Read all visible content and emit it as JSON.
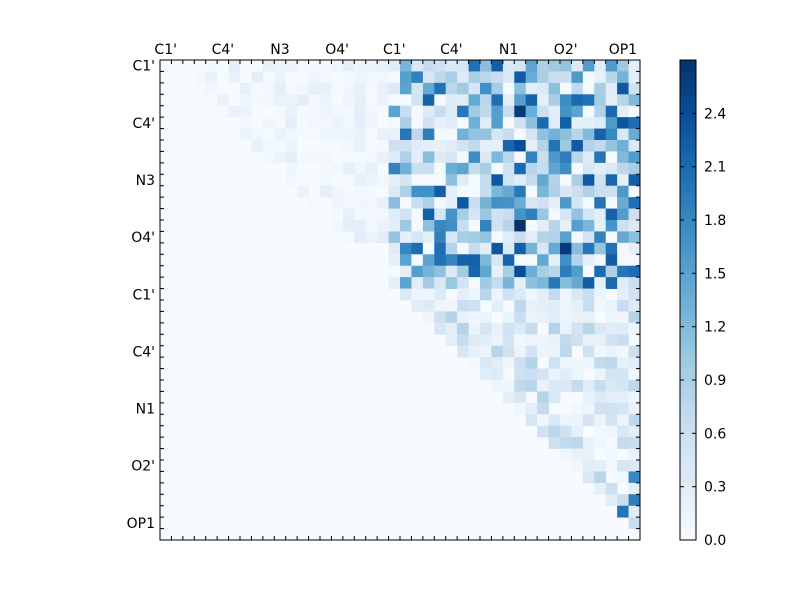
{
  "chart_data": {
    "type": "heatmap",
    "title": "",
    "xlabel": "",
    "ylabel": "",
    "grid": false,
    "rows": 42,
    "cols": 42,
    "matrix_form": "upper-triangular",
    "x_tick_labels": [
      "C1'",
      "C4'",
      "N3",
      "O4'",
      "C1'",
      "C4'",
      "N1",
      "O2'",
      "OP1"
    ],
    "y_tick_labels": [
      "C1'",
      "C4'",
      "N3",
      "O4'",
      "C1'",
      "C4'",
      "N1",
      "O2'",
      "OP1"
    ],
    "tick_positions": [
      0.5,
      5.5,
      10.5,
      15.5,
      20.5,
      25.5,
      30.5,
      35.5,
      40.5
    ],
    "color_scale": {
      "colormap": "Blues",
      "range": [
        0.0,
        2.7
      ],
      "colors": [
        "#f7fbff",
        "#deebf7",
        "#c6dbef",
        "#9ecae1",
        "#6baed6",
        "#4292c6",
        "#2171b5",
        "#08519c",
        "#08306b"
      ],
      "ticks": [
        0.0,
        0.3,
        0.6,
        0.9,
        1.2,
        1.5,
        1.8,
        2.1,
        2.4
      ],
      "tick_labels": [
        "0.0",
        "0.3",
        "0.6",
        "0.9",
        "1.2",
        "1.5",
        "1.8",
        "2.1",
        "2.4"
      ]
    },
    "value_regions": [
      {
        "rows": [
          0,
          15
        ],
        "cols": [
          1,
          19
        ],
        "level": 0.15,
        "note": "first block, upper triangle"
      },
      {
        "rows": [
          0,
          19
        ],
        "cols": [
          20,
          41
        ],
        "level": 1.25,
        "note": "off-diagonal block"
      },
      {
        "rows": [
          20,
          41
        ],
        "cols": [
          20,
          41
        ],
        "level": 0.45,
        "note": "second block, upper triangle"
      }
    ],
    "highlights": [
      {
        "row": 4,
        "col": 31,
        "value": 2.6
      },
      {
        "row": 7,
        "col": 31,
        "value": 2.4
      },
      {
        "row": 5,
        "col": 35,
        "value": 2.2
      },
      {
        "row": 14,
        "col": 31,
        "value": 2.7
      },
      {
        "row": 16,
        "col": 35,
        "value": 2.6
      },
      {
        "row": 16,
        "col": 29,
        "value": 2.3
      },
      {
        "row": 18,
        "col": 31,
        "value": 2.4
      },
      {
        "row": 16,
        "col": 39,
        "value": 2.0
      },
      {
        "row": 36,
        "col": 41,
        "value": 1.8
      },
      {
        "row": 38,
        "col": 41,
        "value": 1.9
      },
      {
        "row": 39,
        "col": 40,
        "value": 2.0
      }
    ]
  }
}
